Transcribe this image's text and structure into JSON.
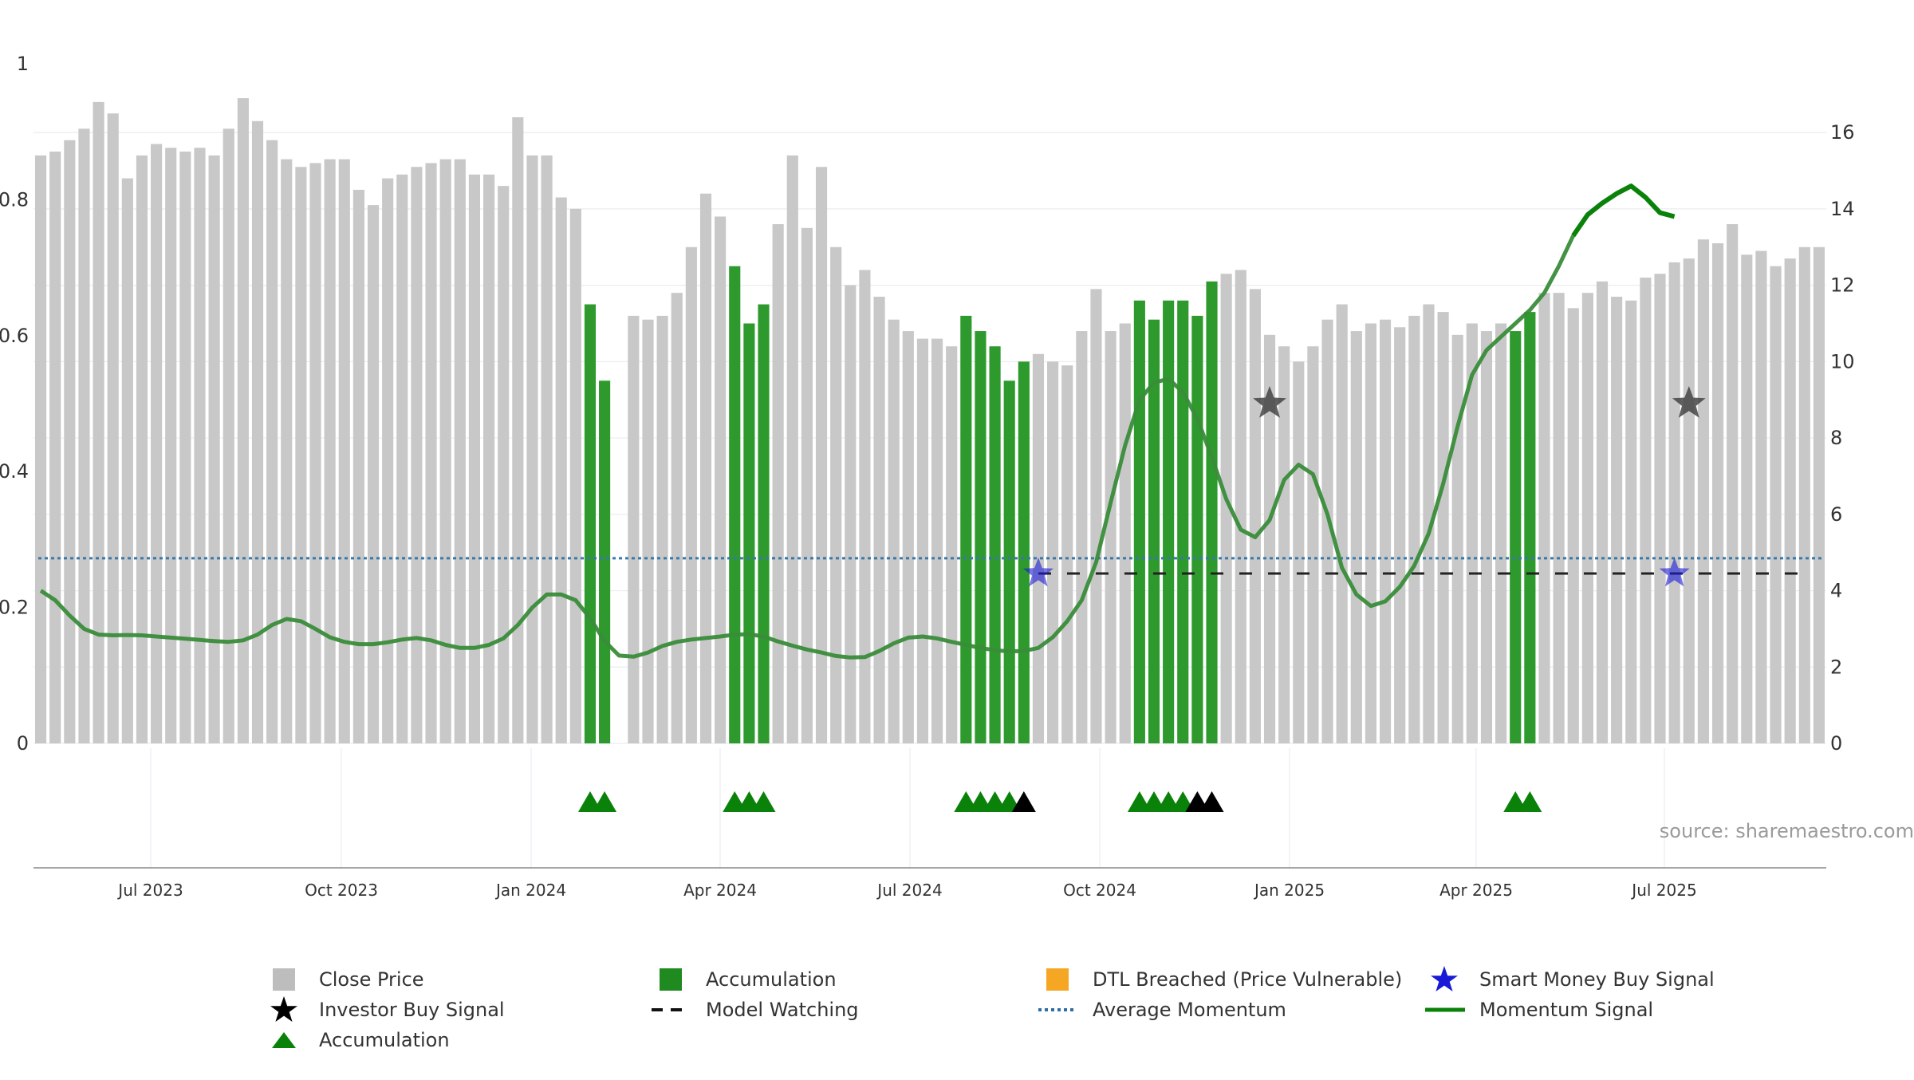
{
  "chart_data": {
    "type": "bar",
    "left_axis": {
      "range": [
        0,
        1
      ],
      "ticks": [
        "0",
        "0.2",
        "0.4",
        "0.6",
        "0.8",
        "1"
      ]
    },
    "right_axis": {
      "range": [
        0,
        17.8
      ],
      "ticks": [
        "0",
        "2",
        "4",
        "6",
        "8",
        "10",
        "12",
        "14",
        "16"
      ]
    },
    "x_ticks": [
      "Jul 2023",
      "Oct 2023",
      "Jan 2024",
      "Apr 2024",
      "Jul 2024",
      "Oct 2024",
      "Jan 2025",
      "Apr 2025",
      "Jul 2025"
    ],
    "grid": true,
    "legend_position": "bottom",
    "source": "source: sharemaestro.com",
    "close_price": [
      15.4,
      15.5,
      15.8,
      16.1,
      16.8,
      16.5,
      14.8,
      15.4,
      15.7,
      15.6,
      15.5,
      15.6,
      15.4,
      16.1,
      16.9,
      16.3,
      15.8,
      15.3,
      15.1,
      15.2,
      15.3,
      15.3,
      14.5,
      14.1,
      14.8,
      14.9,
      15.1,
      15.2,
      15.3,
      15.3,
      14.9,
      14.9,
      14.6,
      16.4,
      15.4,
      15.4,
      14.3,
      14.0,
      11.5,
      9.5,
      0,
      11.2,
      11.1,
      11.2,
      11.8,
      13.0,
      14.4,
      13.8,
      12.5,
      11.0,
      11.5,
      13.6,
      15.4,
      13.5,
      15.1,
      13.0,
      12.0,
      12.4,
      11.7,
      11.1,
      10.8,
      10.6,
      10.6,
      10.4,
      11.2,
      10.8,
      10.4,
      9.5,
      10.0,
      10.2,
      10.0,
      9.9,
      10.8,
      11.9,
      10.8,
      11.0,
      11.6,
      11.1,
      11.6,
      11.6,
      11.2,
      12.1,
      12.3,
      12.4,
      11.9,
      10.7,
      10.4,
      10.0,
      10.4,
      11.1,
      11.5,
      10.8,
      11.0,
      11.1,
      10.9,
      11.2,
      11.5,
      11.3,
      10.7,
      11.0,
      10.8,
      11.0,
      10.8,
      11.3,
      11.8,
      11.8,
      11.4,
      11.8,
      12.1,
      11.7,
      11.6,
      12.2,
      12.3,
      12.6,
      12.7,
      13.2,
      13.1,
      13.6,
      12.8,
      12.9,
      12.5,
      12.7,
      13.0,
      13.0
    ],
    "accumulation_bars": [
      38,
      39,
      48,
      49,
      50,
      64,
      65,
      66,
      67,
      68,
      76,
      77,
      78,
      79,
      80,
      81,
      102,
      103
    ],
    "momentum_signal": [
      [
        0,
        4.0
      ],
      [
        1,
        3.75
      ],
      [
        2,
        3.35
      ],
      [
        3,
        3.0
      ],
      [
        4,
        2.85
      ],
      [
        5,
        2.83
      ],
      [
        6,
        2.84
      ],
      [
        7,
        2.83
      ],
      [
        8,
        2.8
      ],
      [
        9,
        2.77
      ],
      [
        10,
        2.74
      ],
      [
        11,
        2.71
      ],
      [
        12,
        2.68
      ],
      [
        13,
        2.66
      ],
      [
        14,
        2.7
      ],
      [
        15,
        2.85
      ],
      [
        16,
        3.1
      ],
      [
        17,
        3.26
      ],
      [
        18,
        3.2
      ],
      [
        19,
        3.0
      ],
      [
        20,
        2.78
      ],
      [
        21,
        2.66
      ],
      [
        22,
        2.6
      ],
      [
        23,
        2.6
      ],
      [
        24,
        2.65
      ],
      [
        25,
        2.72
      ],
      [
        26,
        2.76
      ],
      [
        27,
        2.7
      ],
      [
        28,
        2.58
      ],
      [
        29,
        2.5
      ],
      [
        30,
        2.5
      ],
      [
        31,
        2.58
      ],
      [
        32,
        2.75
      ],
      [
        33,
        3.1
      ],
      [
        34,
        3.56
      ],
      [
        35,
        3.9
      ],
      [
        36,
        3.9
      ],
      [
        37,
        3.75
      ],
      [
        38,
        3.28
      ],
      [
        39,
        2.68
      ],
      [
        40,
        2.3
      ],
      [
        41,
        2.27
      ],
      [
        42,
        2.38
      ],
      [
        43,
        2.55
      ],
      [
        44,
        2.66
      ],
      [
        45,
        2.72
      ],
      [
        46,
        2.76
      ],
      [
        47,
        2.8
      ],
      [
        48,
        2.85
      ],
      [
        49,
        2.86
      ],
      [
        50,
        2.8
      ],
      [
        51,
        2.67
      ],
      [
        52,
        2.56
      ],
      [
        53,
        2.46
      ],
      [
        54,
        2.38
      ],
      [
        55,
        2.29
      ],
      [
        56,
        2.25
      ],
      [
        57,
        2.26
      ],
      [
        58,
        2.42
      ],
      [
        59,
        2.62
      ],
      [
        60,
        2.77
      ],
      [
        61,
        2.8
      ],
      [
        62,
        2.75
      ],
      [
        63,
        2.66
      ],
      [
        64,
        2.58
      ],
      [
        65,
        2.5
      ],
      [
        66,
        2.44
      ],
      [
        67,
        2.41
      ],
      [
        68,
        2.42
      ],
      [
        69,
        2.5
      ],
      [
        70,
        2.78
      ],
      [
        71,
        3.2
      ],
      [
        72,
        3.75
      ],
      [
        73,
        4.75
      ],
      [
        74,
        6.3
      ],
      [
        75,
        7.8
      ],
      [
        76,
        9.0
      ],
      [
        77,
        9.45
      ],
      [
        78,
        9.55
      ],
      [
        79,
        9.2
      ],
      [
        80,
        8.5
      ],
      [
        81,
        7.5
      ],
      [
        82,
        6.4
      ],
      [
        83,
        5.6
      ],
      [
        84,
        5.4
      ],
      [
        85,
        5.85
      ],
      [
        86,
        6.9
      ],
      [
        87,
        7.3
      ],
      [
        88,
        7.05
      ],
      [
        89,
        6.0
      ],
      [
        90,
        4.6
      ],
      [
        91,
        3.9
      ],
      [
        92,
        3.6
      ],
      [
        93,
        3.72
      ],
      [
        94,
        4.1
      ],
      [
        95,
        4.65
      ],
      [
        96,
        5.5
      ],
      [
        97,
        6.8
      ],
      [
        98,
        8.3
      ],
      [
        99,
        9.65
      ],
      [
        100,
        10.3
      ],
      [
        101,
        10.65
      ],
      [
        102,
        11.0
      ],
      [
        103,
        11.35
      ],
      [
        104,
        11.8
      ],
      [
        105,
        12.5
      ],
      [
        106,
        13.3
      ],
      [
        107,
        13.85
      ],
      [
        108,
        14.15
      ],
      [
        109,
        14.4
      ],
      [
        110,
        14.6
      ],
      [
        111,
        14.3
      ],
      [
        112,
        13.9
      ],
      [
        113,
        13.8
      ]
    ],
    "average_momentum": 4.85,
    "model_watching": {
      "from_index": 69,
      "to_index": 123,
      "value": 4.45
    },
    "investor_buy_signal": [
      [
        85,
        8.9
      ],
      [
        114,
        8.9
      ]
    ],
    "smart_money_buy_signal": [
      [
        69,
        4.45
      ],
      [
        113,
        4.45
      ]
    ],
    "accumulation_markers": [
      {
        "index": 38,
        "color": "green"
      },
      {
        "index": 39,
        "color": "green"
      },
      {
        "index": 48,
        "color": "green"
      },
      {
        "index": 49,
        "color": "green"
      },
      {
        "index": 50,
        "color": "green"
      },
      {
        "index": 64,
        "color": "green"
      },
      {
        "index": 65,
        "color": "green"
      },
      {
        "index": 66,
        "color": "green"
      },
      {
        "index": 67,
        "color": "green"
      },
      {
        "index": 68,
        "color": "black"
      },
      {
        "index": 76,
        "color": "green"
      },
      {
        "index": 77,
        "color": "green"
      },
      {
        "index": 78,
        "color": "green"
      },
      {
        "index": 79,
        "color": "green"
      },
      {
        "index": 80,
        "color": "black"
      },
      {
        "index": 81,
        "color": "black"
      },
      {
        "index": 102,
        "color": "green"
      },
      {
        "index": 103,
        "color": "green"
      }
    ],
    "legend": [
      {
        "label": "Close Price",
        "icon": "grey-square-icon"
      },
      {
        "label": "Accumulation",
        "icon": "green-square-icon"
      },
      {
        "label": "DTL Breached (Price Vulnerable)",
        "icon": "orange-square-icon"
      },
      {
        "label": "Smart Money Buy Signal",
        "icon": "blue-star-icon"
      },
      {
        "label": "Investor Buy Signal",
        "icon": "black-star-icon"
      },
      {
        "label": "Model Watching",
        "icon": "dashed-line-icon"
      },
      {
        "label": "Average Momentum",
        "icon": "dotted-line-icon"
      },
      {
        "label": "Momentum Signal",
        "icon": "green-line-icon"
      },
      {
        "label": "Accumulation",
        "icon": "green-triangle-icon"
      }
    ],
    "colors": {
      "close_price": "#c8c8c8",
      "accumulation": "#2e9a2e",
      "momentum": "#3a8c3a",
      "momentum_strong": "#0a820a",
      "average_momentum": "#3a78a8",
      "model_watching": "#222222",
      "smart_money": "#1a1ad6",
      "investor": "#444444",
      "dtl_breached": "#f5a623",
      "triangle_green": "#0a820a",
      "triangle_black": "#000000"
    }
  }
}
